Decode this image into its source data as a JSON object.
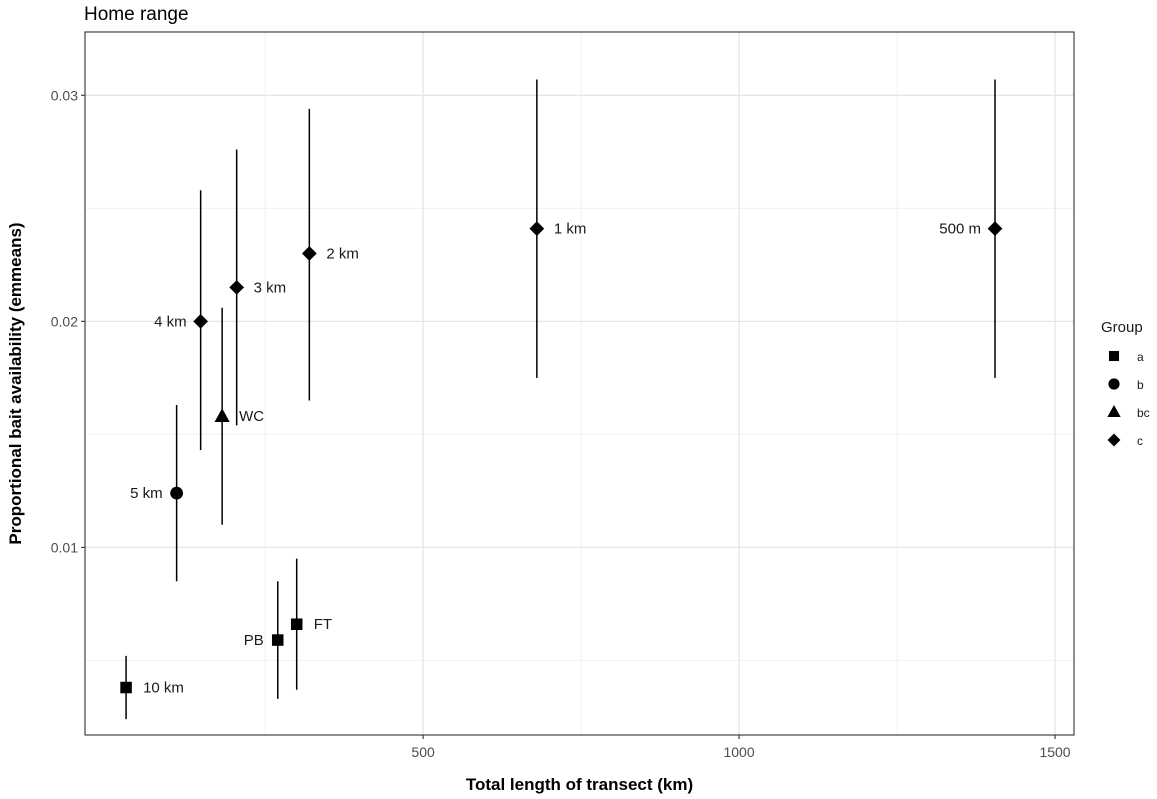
{
  "chart_data": {
    "type": "scatter",
    "title": "Home range",
    "xlabel": "Total length of transect (km)",
    "ylabel": "Proportional bait availability (emmeans)",
    "xlim": [
      -35,
      1530
    ],
    "ylim": [
      0.0017,
      0.0328
    ],
    "x_ticks": [
      500,
      1000,
      1500
    ],
    "x_tick_labels": [
      "500",
      "1000",
      "1500"
    ],
    "y_ticks": [
      0.01,
      0.02,
      0.03
    ],
    "y_tick_labels": [
      "0.01",
      "0.02",
      "0.03"
    ],
    "x_minor": [
      250,
      750,
      1250
    ],
    "y_minor": [
      0.005,
      0.015,
      0.025
    ],
    "grid": true,
    "legend": {
      "title": "Group",
      "position": "right",
      "entries": [
        {
          "label": "a",
          "shape": "square"
        },
        {
          "label": "b",
          "shape": "circle"
        },
        {
          "label": "bc",
          "shape": "triangle"
        },
        {
          "label": "c",
          "shape": "diamond"
        }
      ]
    },
    "points": [
      {
        "label": "10 km",
        "x": 30,
        "y": 0.0038,
        "lower": 0.0024,
        "upper": 0.0052,
        "group": "a",
        "label_side": "right"
      },
      {
        "label": "PB",
        "x": 270,
        "y": 0.0059,
        "lower": 0.0033,
        "upper": 0.0085,
        "group": "a",
        "label_side": "left"
      },
      {
        "label": "FT",
        "x": 300,
        "y": 0.0066,
        "lower": 0.0037,
        "upper": 0.0095,
        "group": "a",
        "label_side": "right"
      },
      {
        "label": "5 km",
        "x": 110,
        "y": 0.0124,
        "lower": 0.0085,
        "upper": 0.0163,
        "group": "b",
        "label_side": "left"
      },
      {
        "label": "WC",
        "x": 182,
        "y": 0.0158,
        "lower": 0.011,
        "upper": 0.0206,
        "group": "bc",
        "label_side": "right"
      },
      {
        "label": "4 km",
        "x": 148,
        "y": 0.02,
        "lower": 0.0143,
        "upper": 0.0258,
        "group": "c",
        "label_side": "left"
      },
      {
        "label": "3 km",
        "x": 205,
        "y": 0.0215,
        "lower": 0.0154,
        "upper": 0.0276,
        "group": "c",
        "label_side": "right"
      },
      {
        "label": "2 km",
        "x": 320,
        "y": 0.023,
        "lower": 0.0165,
        "upper": 0.0294,
        "group": "c",
        "label_side": "right"
      },
      {
        "label": "1 km",
        "x": 680,
        "y": 0.0241,
        "lower": 0.0175,
        "upper": 0.0307,
        "group": "c",
        "label_side": "right"
      },
      {
        "label": "500 m",
        "x": 1405,
        "y": 0.0241,
        "lower": 0.0175,
        "upper": 0.0307,
        "group": "c",
        "label_side": "left"
      }
    ]
  }
}
